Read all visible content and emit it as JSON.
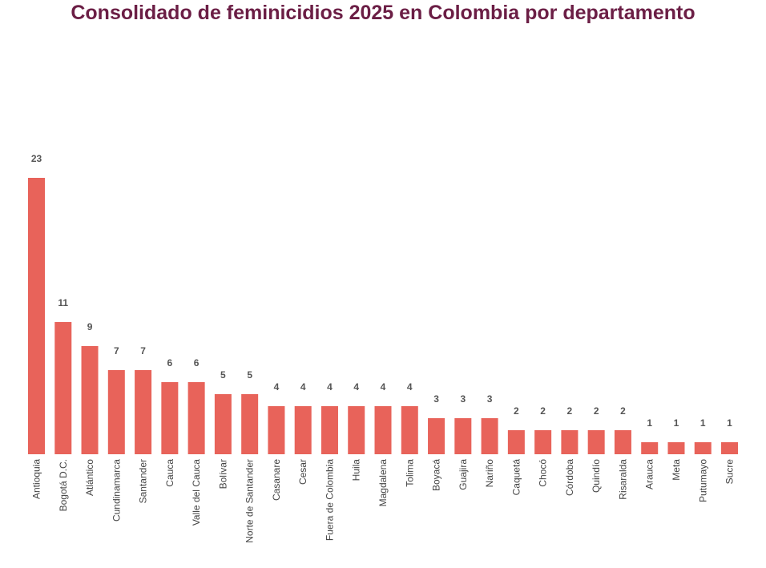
{
  "chart_data": {
    "type": "bar",
    "title": "Consolidado de feminicidios 2025 en Colombia por departamento",
    "categories": [
      "Antioquia",
      "Bogotá D.C.",
      "Atlántico",
      "Cundinamarca",
      "Santander",
      "Cauca",
      "Valle del Cauca",
      "Bolívar",
      "Norte de Santander",
      "Casanare",
      "Cesar",
      "Fuera de Colombia",
      "Huila",
      "Magdalena",
      "Tolima",
      "Boyacá",
      "Guajira",
      "Nariño",
      "Caquetá",
      "Chocó",
      "Córdoba",
      "Quindío",
      "Risaralda",
      "Arauca",
      "Meta",
      "Putumayo",
      "Sucre"
    ],
    "values": [
      23,
      11,
      9,
      7,
      7,
      6,
      6,
      5,
      5,
      4,
      4,
      4,
      4,
      4,
      4,
      3,
      3,
      3,
      2,
      2,
      2,
      2,
      2,
      1,
      1,
      1,
      1
    ],
    "ylim": [
      0,
      23
    ],
    "bar_color": "#e8635a",
    "title_color": "#6b1e45",
    "grid": false,
    "legend": "none"
  }
}
